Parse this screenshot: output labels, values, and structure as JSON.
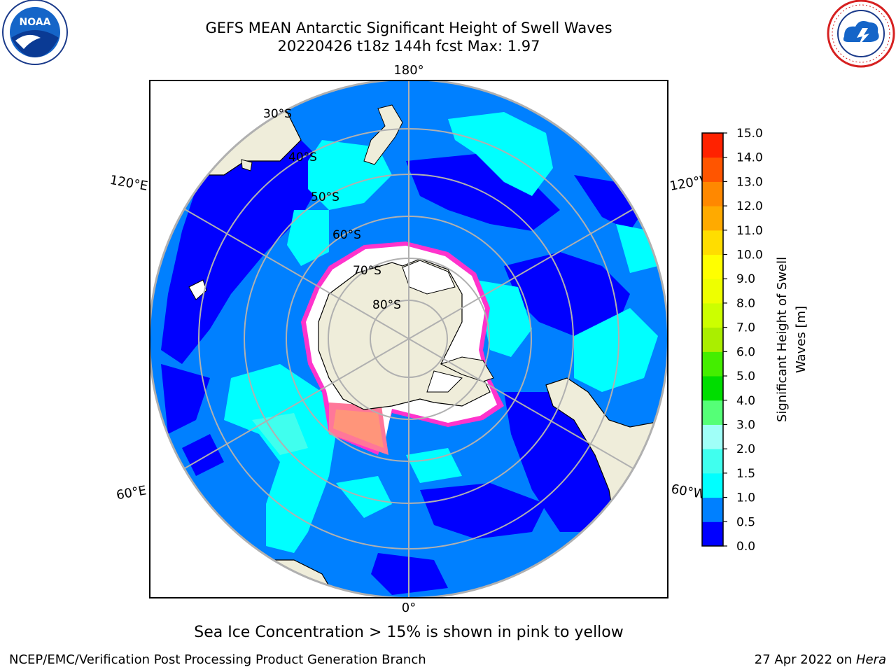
{
  "title": {
    "line1": "GEFS MEAN Antarctic Significant Height of Swell Waves",
    "line2": "20220426 t18z 144h fcst   Max: 1.97"
  },
  "map": {
    "projection": "south-polar-stereographic",
    "lon_labels": {
      "top": "180°",
      "bottom": "0°",
      "upper_left": "120°E",
      "upper_right": "120°W",
      "lower_left": "60°E",
      "lower_right": "60°W"
    },
    "lat_labels": [
      "30°S",
      "40°S",
      "50°S",
      "60°S",
      "70°S",
      "80°S"
    ],
    "colors": {
      "ocean_low": "#0000ff",
      "ocean_mid": "#0080ff",
      "ocean_high": "#00ffff",
      "land": "#efedda",
      "sea_ice_edge": "#ff33cc",
      "graticule": "#b0b0b0"
    }
  },
  "colorbar": {
    "label": "Significant Height of Swell Waves [m]",
    "label_line1": "Significant Height of Swell",
    "label_line2": "Waves [m]",
    "ticks": [
      "0.0",
      "0.5",
      "1.0",
      "1.5",
      "2.0",
      "3.0",
      "4.0",
      "5.0",
      "6.0",
      "7.0",
      "8.0",
      "9.0",
      "10.0",
      "11.0",
      "12.0",
      "13.0",
      "14.0",
      "15.0"
    ],
    "colors": [
      "#0000ff",
      "#0080ff",
      "#00ffff",
      "#40ffee",
      "#a0fff8",
      "#55ff77",
      "#00dd00",
      "#44ee00",
      "#aaee00",
      "#ccff00",
      "#eeff00",
      "#ffff00",
      "#ffdd00",
      "#ffaa00",
      "#ff8800",
      "#ff5500",
      "#ff2200"
    ]
  },
  "notes": {
    "sea_ice": "Sea Ice Concentration > 15% is shown in pink to yellow"
  },
  "footer": {
    "left": "NCEP/EMC/Verification Post Processing Product Generation Branch",
    "right_prefix": "27 Apr 2022 on ",
    "right_host": "Hera"
  },
  "logos": {
    "noaa": "NOAA",
    "nws": "NATIONAL WEATHER SERVICE"
  }
}
